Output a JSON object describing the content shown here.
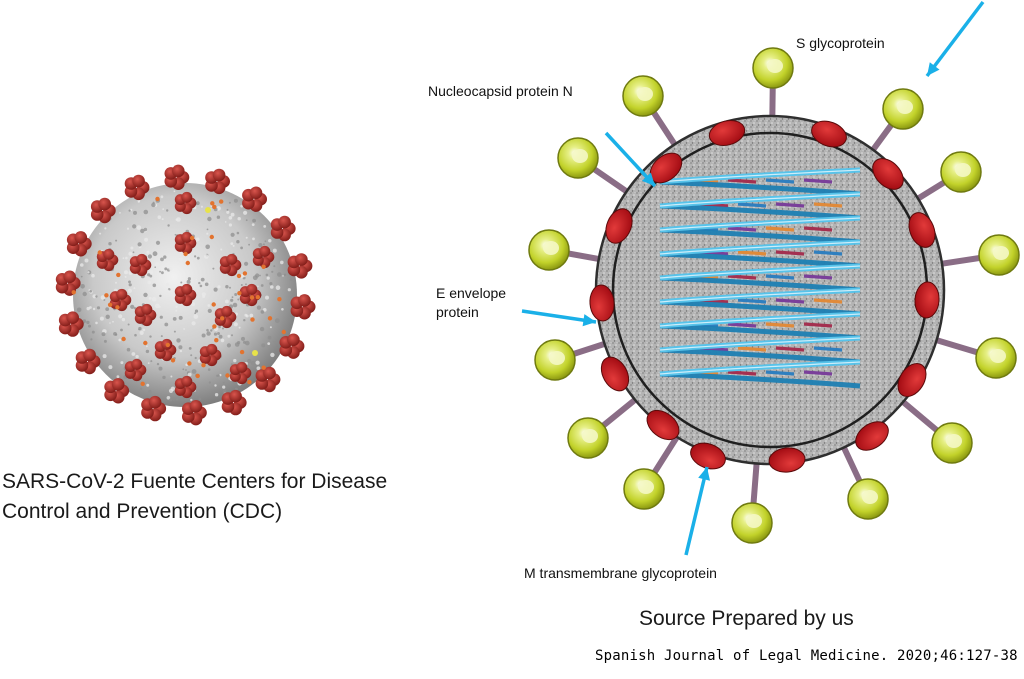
{
  "left_panel": {
    "caption_line1": "SARS-CoV-2 Fuente Centers for Disease",
    "caption_line2": "Control and Prevention (CDC)"
  },
  "right_panel": {
    "labels": {
      "s_glycoprotein": "S glycoprotein",
      "nucleocapsid": "Nucleocapsid protein N",
      "e_envelope_line1": "E envelope",
      "e_envelope_line2": "protein",
      "m_transmembrane": "M transmembrane glycoprotein"
    },
    "source": "Source Prepared by us"
  },
  "footer": {
    "journal": "Spanish Journal of Legal Medicine. 2020;46:127-38"
  },
  "colors": {
    "spike_head": "#c8d92b",
    "spike_stalk": "#8a6d86",
    "m_protein": "#c4121a",
    "rna_strand": "#57c3ea",
    "arrow": "#1ab0e8",
    "cdc_spike": "#b52a2a",
    "cdc_body": "#c9c9c9"
  }
}
